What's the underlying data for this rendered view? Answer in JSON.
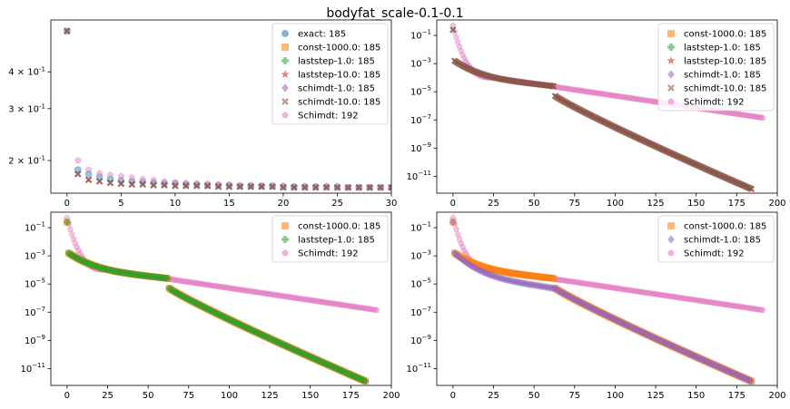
{
  "figure": {
    "title": "bodyfat_scale-0.1-0.1"
  },
  "series_styles": {
    "exact": {
      "color": "#1f77b4",
      "marker": "circle"
    },
    "const-1000.0": {
      "color": "#ff7f0e",
      "marker": "square"
    },
    "laststep-1.0": {
      "color": "#2ca02c",
      "marker": "plus"
    },
    "laststep-10.0": {
      "color": "#d62728",
      "marker": "star"
    },
    "schimdt-1.0": {
      "color": "#9467bd",
      "marker": "diamond"
    },
    "schimdt-10.0": {
      "color": "#8c564b",
      "marker": "x"
    },
    "Schimdt": {
      "color": "#e377c2",
      "marker": "pentagon"
    }
  },
  "chart_data": [
    {
      "type": "scatter",
      "panel": "top-left",
      "title": "",
      "xlabel": "",
      "ylabel": "",
      "xlim": [
        -1.5,
        30
      ],
      "ylim": [
        0.155,
        0.6
      ],
      "yscale": "log",
      "xticks": [
        0,
        5,
        10,
        15,
        20,
        25,
        30
      ],
      "yticks": [
        {
          "v": 0.4,
          "label": "4 × 10^-1"
        },
        {
          "v": 0.3,
          "label": "3 × 10^-1"
        },
        {
          "v": 0.2,
          "label": "2 × 10^-1"
        }
      ],
      "legend": "top-right",
      "legend_entries": [
        "exact: 185",
        "const-1000.0: 185",
        "laststep-1.0: 185",
        "laststep-10.0: 185",
        "schimdt-1.0: 185",
        "schimdt-10.0: 185",
        "Schimdt: 192"
      ],
      "legend_keys": [
        "exact",
        "const-1000.0",
        "laststep-1.0",
        "laststep-10.0",
        "schimdt-1.0",
        "schimdt-10.0",
        "Schimdt"
      ],
      "series": [
        {
          "name": "exact",
          "x": [
            0,
            1,
            2,
            3,
            4,
            5,
            6,
            7,
            8,
            9,
            10,
            11,
            12,
            13,
            14,
            15,
            16,
            17,
            18,
            19,
            20,
            21,
            22,
            23,
            24,
            25,
            26,
            27,
            28,
            29,
            30
          ],
          "y": [
            0.55,
            0.186,
            0.18,
            0.176,
            0.173,
            0.171,
            0.17,
            0.169,
            0.168,
            0.167,
            0.167,
            0.166,
            0.166,
            0.165,
            0.165,
            0.165,
            0.164,
            0.164,
            0.164,
            0.164,
            0.163,
            0.163,
            0.163,
            0.163,
            0.163,
            0.163,
            0.162,
            0.162,
            0.162,
            0.162,
            0.162
          ]
        },
        {
          "name": "Schimdt",
          "x": [
            1,
            2,
            3,
            4,
            5,
            6,
            7,
            8,
            9,
            10,
            11,
            12,
            13,
            14,
            15,
            16,
            17,
            18,
            19,
            20,
            21,
            22,
            23,
            24,
            25,
            26,
            27,
            28,
            29,
            30
          ],
          "y": [
            0.2,
            0.186,
            0.181,
            0.179,
            0.177,
            0.175,
            0.173,
            0.172,
            0.17,
            0.169,
            0.168,
            0.167,
            0.167,
            0.166,
            0.166,
            0.165,
            0.165,
            0.164,
            0.164,
            0.164,
            0.163,
            0.163,
            0.163,
            0.163,
            0.162,
            0.162,
            0.162,
            0.162,
            0.162,
            0.162
          ]
        },
        {
          "name": "schimdt-10.0",
          "x": [
            0,
            1,
            2,
            3,
            4,
            5,
            6,
            7,
            8,
            9,
            10,
            11,
            12,
            13,
            14,
            15,
            16,
            17,
            18,
            19,
            20,
            21,
            22,
            23,
            24,
            25,
            26,
            27,
            28,
            29,
            30
          ],
          "y": [
            0.55,
            0.18,
            0.172,
            0.17,
            0.168,
            0.167,
            0.166,
            0.166,
            0.165,
            0.165,
            0.164,
            0.164,
            0.164,
            0.164,
            0.163,
            0.163,
            0.163,
            0.163,
            0.163,
            0.163,
            0.162,
            0.162,
            0.162,
            0.162,
            0.162,
            0.162,
            0.162,
            0.162,
            0.162,
            0.162,
            0.162
          ]
        }
      ]
    },
    {
      "type": "scatter",
      "panel": "top-right",
      "title": "",
      "xlabel": "",
      "ylabel": "",
      "xlim": [
        -10,
        200
      ],
      "ylim_exp": [
        -12.2,
        0.1
      ],
      "yscale": "log",
      "xticks": [
        0,
        25,
        50,
        75,
        100,
        125,
        150,
        175,
        200
      ],
      "yticks_exp": [
        -1,
        -3,
        -5,
        -7,
        -9,
        -11
      ],
      "legend": "top-right",
      "legend_entries": [
        "const-1000.0: 185",
        "laststep-1.0: 185",
        "laststep-10.0: 185",
        "schimdt-1.0: 185",
        "schimdt-10.0: 185",
        "Schimdt: 192"
      ],
      "legend_keys": [
        "const-1000.0",
        "laststep-1.0",
        "laststep-10.0",
        "schimdt-1.0",
        "schimdt-10.0",
        "Schimdt"
      ],
      "series_model": {
        "Schimdt": {
          "n": 192,
          "start_exp": -0.3,
          "knee_x": 25,
          "knee_exp": -4.0,
          "end_exp": -6.85
        },
        "variant": {
          "n": 185,
          "start_exp": -0.6,
          "drop_exp": -2.8,
          "plateau_x": 62,
          "plateau_exp": -4.6,
          "jump_exp": -5.3,
          "end_exp": -11.9
        },
        "drawn": [
          "Schimdt",
          "schimdt-10.0"
        ]
      }
    },
    {
      "type": "scatter",
      "panel": "bottom-left",
      "title": "",
      "xlabel": "",
      "ylabel": "",
      "xlim": [
        -10,
        200
      ],
      "ylim_exp": [
        -12.2,
        0.1
      ],
      "yscale": "log",
      "xticks": [
        0,
        25,
        50,
        75,
        100,
        125,
        150,
        175,
        200
      ],
      "yticks_exp": [
        -1,
        -3,
        -5,
        -7,
        -9,
        -11
      ],
      "legend": "top-right",
      "legend_entries": [
        "const-1000.0: 185",
        "laststep-1.0: 185",
        "Schimdt: 192"
      ],
      "legend_keys": [
        "const-1000.0",
        "laststep-1.0",
        "Schimdt"
      ],
      "series_model": {
        "Schimdt": {
          "n": 192,
          "start_exp": -0.3,
          "knee_x": 25,
          "knee_exp": -4.0,
          "end_exp": -6.85
        },
        "variant": {
          "n": 185,
          "start_exp": -0.6,
          "drop_exp": -2.8,
          "plateau_x": 62,
          "plateau_exp": -4.6,
          "jump_exp": -5.3,
          "end_exp": -11.9
        },
        "drawn": [
          "Schimdt",
          "const-1000.0",
          "laststep-1.0"
        ]
      }
    },
    {
      "type": "scatter",
      "panel": "bottom-right",
      "title": "",
      "xlabel": "",
      "ylabel": "",
      "xlim": [
        -10,
        200
      ],
      "ylim_exp": [
        -12.2,
        0.1
      ],
      "yscale": "log",
      "xticks": [
        0,
        25,
        50,
        75,
        100,
        125,
        150,
        175,
        200
      ],
      "yticks_exp": [
        -1,
        -3,
        -5,
        -7,
        -9,
        -11
      ],
      "legend": "top-right",
      "legend_entries": [
        "const-1000.0: 185",
        "schimdt-1.0: 185",
        "Schimdt: 192"
      ],
      "legend_keys": [
        "const-1000.0",
        "schimdt-1.0",
        "Schimdt"
      ],
      "series_model": {
        "Schimdt": {
          "n": 192,
          "start_exp": -0.3,
          "knee_x": 25,
          "knee_exp": -4.0,
          "end_exp": -6.85
        },
        "variant": {
          "n": 185,
          "start_exp": -0.6,
          "drop_exp": -2.8,
          "plateau_x": 62,
          "plateau_exp": -4.6,
          "jump_exp": -5.3,
          "end_exp": -11.9
        },
        "schimdt_1_0": {
          "plateau_exp": -4.5,
          "decay_to_exp": -5.4,
          "note_shape": "smooth"
        },
        "drawn": [
          "Schimdt",
          "const-1000.0",
          "schimdt-1.0"
        ]
      }
    }
  ]
}
